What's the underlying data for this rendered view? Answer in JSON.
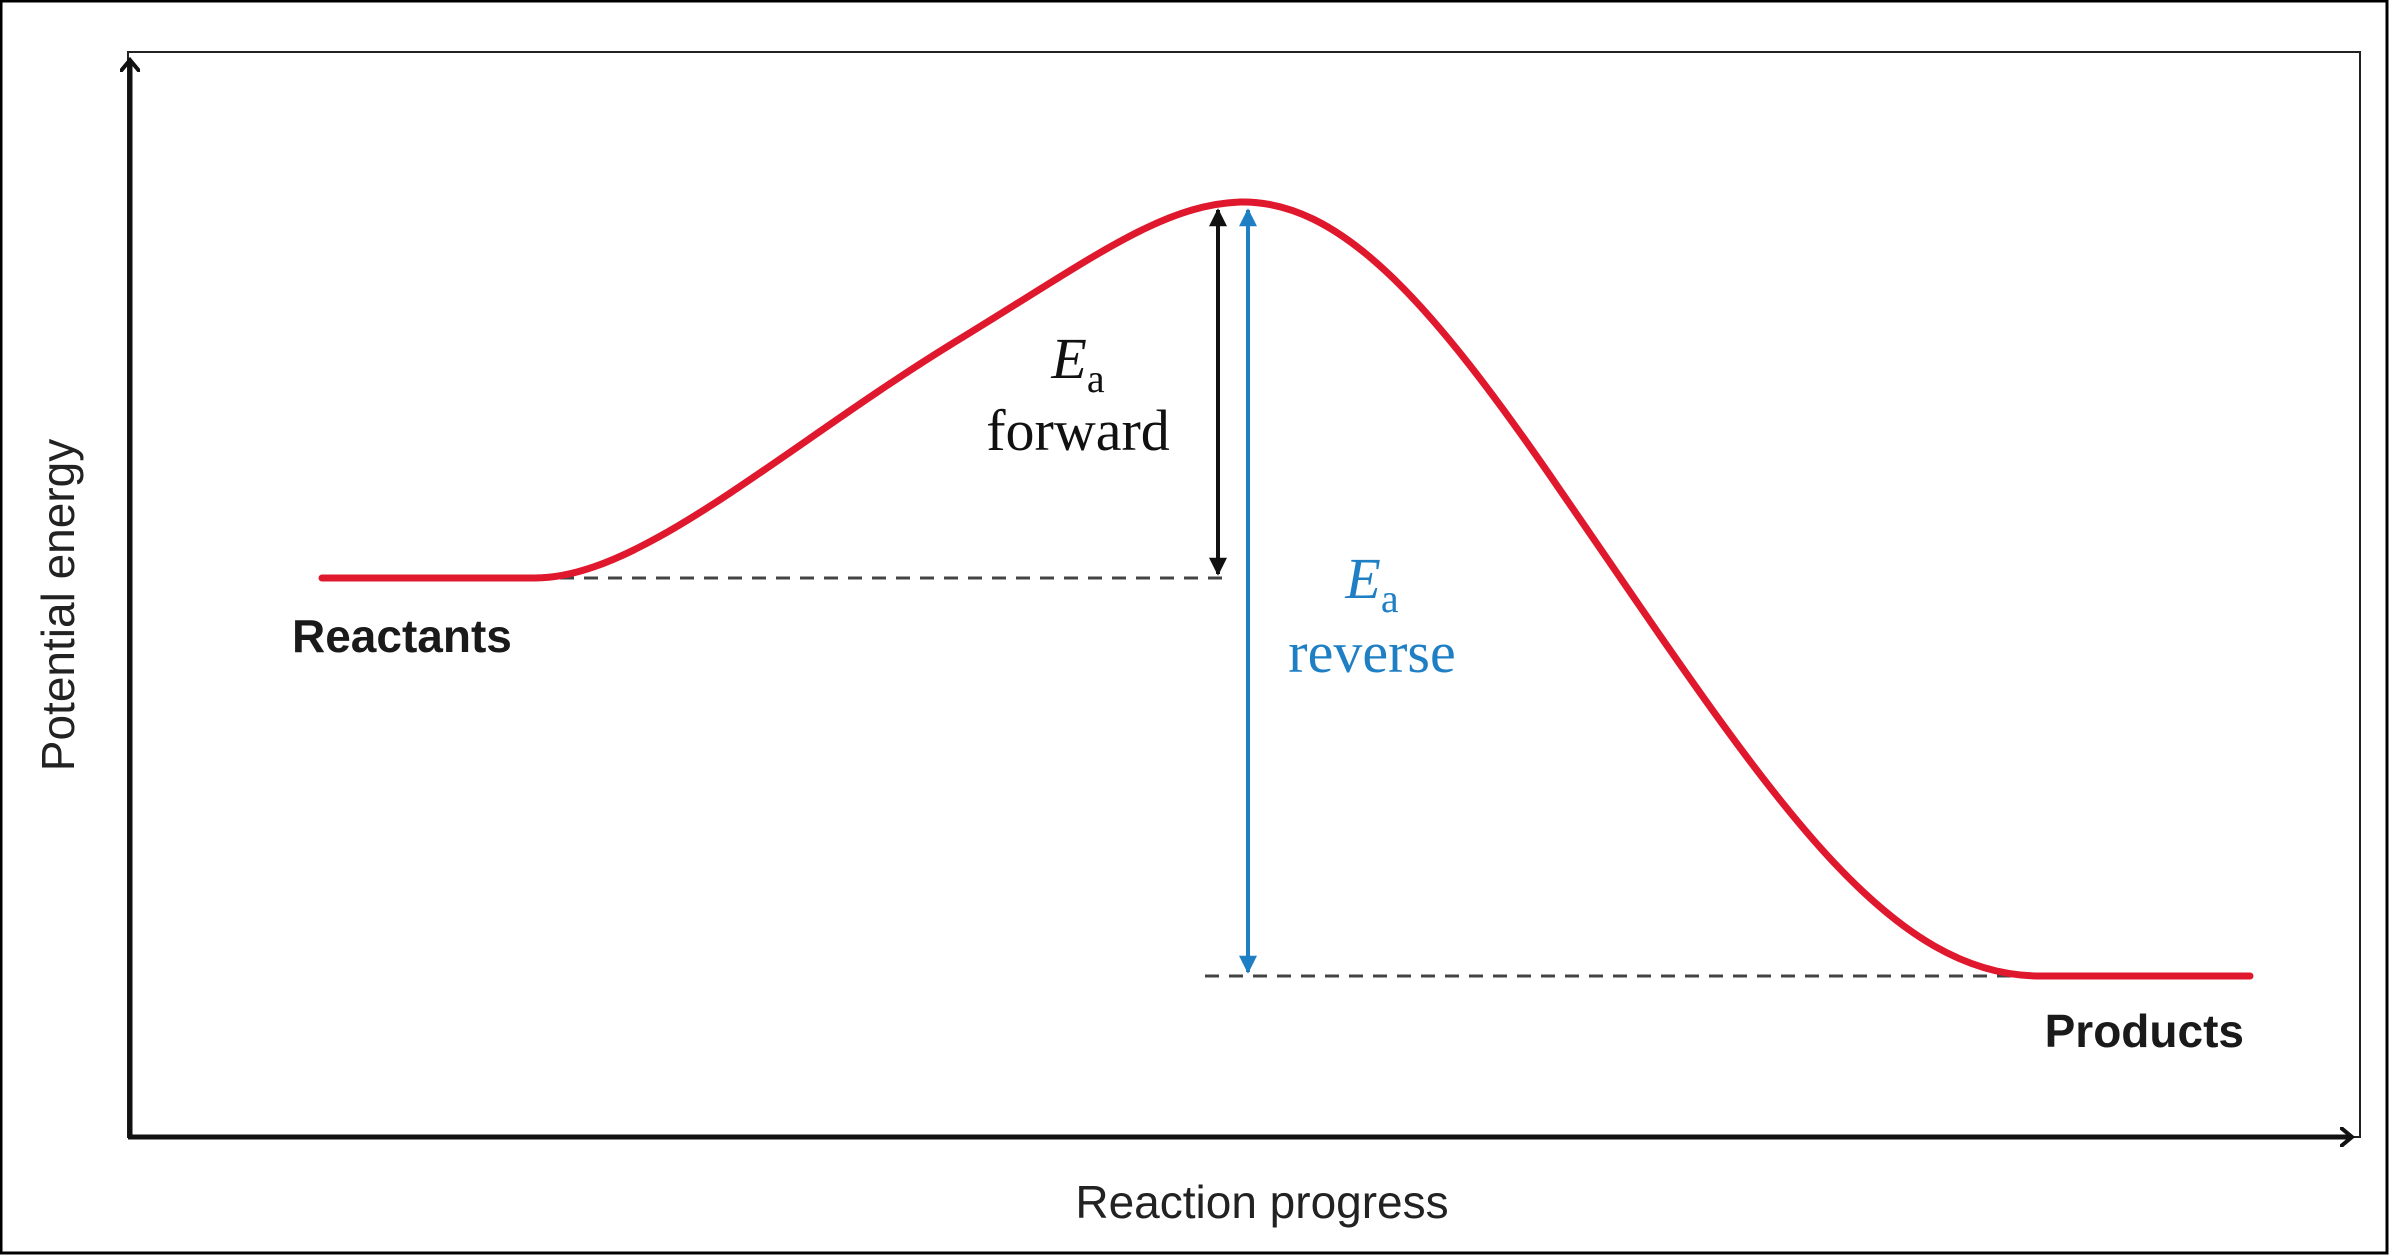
{
  "diagram": {
    "x_axis_label": "Reaction progress",
    "y_axis_label": "Potential energy",
    "reactants_label": "Reactants",
    "products_label": "Products",
    "ea_forward": {
      "symbol": "E",
      "subscript": "a",
      "word": "forward"
    },
    "ea_reverse": {
      "symbol": "E",
      "subscript": "a",
      "word": "reverse"
    }
  },
  "colors": {
    "curve": "#e0182d",
    "forward_arrow": "#111111",
    "reverse_arrow": "#1f7fc4",
    "reverse_text": "#1f7fc4",
    "axes": "#111111",
    "dashed": "#444444",
    "frame": "#000000"
  }
}
